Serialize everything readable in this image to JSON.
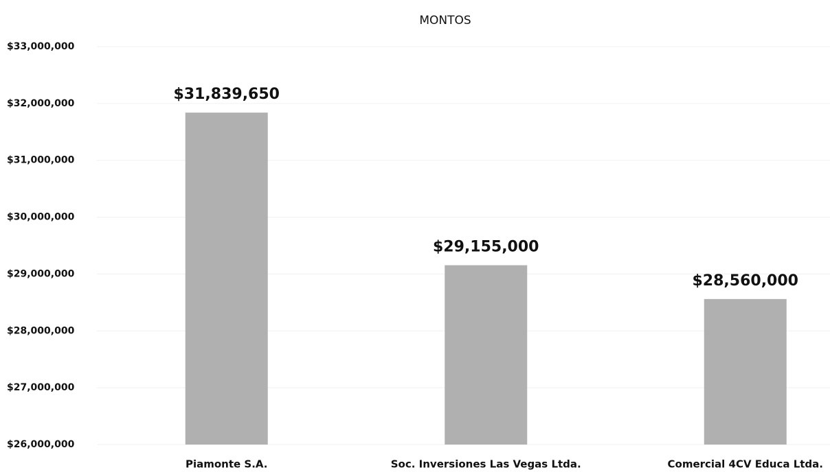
{
  "chart_data": {
    "type": "bar",
    "title": "MONTOS",
    "categories": [
      "Piamonte S.A.",
      "Soc. Inversiones Las Vegas Ltda.",
      "Comercial 4CV Educa Ltda."
    ],
    "values": [
      31839650,
      29155000,
      28560000
    ],
    "value_labels": [
      "$31,839,650",
      "$29,155,000",
      "$28,560,000"
    ],
    "color": "#b0b0b0",
    "ylim": [
      26000000,
      33000000
    ],
    "yticks": [
      {
        "value": 26000000,
        "label": "$26,000,000"
      },
      {
        "value": 27000000,
        "label": "$27,000,000"
      },
      {
        "value": 28000000,
        "label": "$28,000,000"
      },
      {
        "value": 29000000,
        "label": "$29,000,000"
      },
      {
        "value": 30000000,
        "label": "$30,000,000"
      },
      {
        "value": 31000000,
        "label": "$31,000,000"
      },
      {
        "value": 32000000,
        "label": "$32,000,000"
      },
      {
        "value": 33000000,
        "label": "$33,000,000"
      }
    ],
    "grid": true
  }
}
